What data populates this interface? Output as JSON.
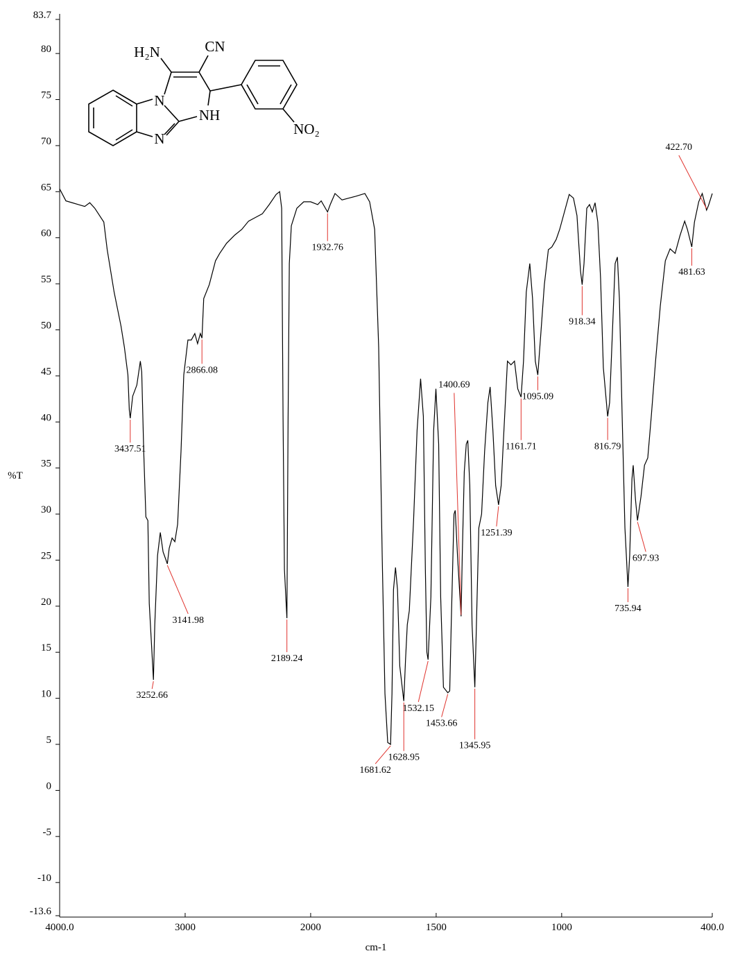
{
  "chart_data": {
    "type": "line",
    "xlabel": "cm-1",
    "ylabel": "%T",
    "xlim": [
      4000,
      400
    ],
    "xbreak": 2000,
    "ylim": [
      -13.6,
      83.7
    ],
    "xticks": [
      {
        "value": 4000,
        "label": "4000.0"
      },
      3000,
      2000,
      1500,
      1000,
      {
        "value": 400,
        "label": "400.0"
      }
    ],
    "yticks": [
      83.7,
      80,
      75,
      70,
      65,
      60,
      55,
      50,
      45,
      40,
      35,
      30,
      25,
      20,
      15,
      10,
      5,
      0,
      -5,
      -10,
      -13.6
    ],
    "structure_labels": [
      "H₂N",
      "CN",
      "N",
      "NH",
      "N",
      "NO₂"
    ],
    "x": [
      4000,
      3950,
      3900,
      3850,
      3800,
      3760,
      3720,
      3648,
      3621,
      3566,
      3511,
      3484,
      3456,
      3445,
      3437.51,
      3418,
      3385,
      3357,
      3346,
      3330,
      3313,
      3297,
      3286,
      3252.66,
      3242,
      3220,
      3198,
      3176,
      3141.98,
      3127,
      3104,
      3082,
      3060,
      3033,
      3011,
      2978,
      2951,
      2923,
      2901,
      2879,
      2866.08,
      2852,
      2808,
      2758,
      2725,
      2670,
      2604,
      2549,
      2495,
      2440,
      2385,
      2330,
      2275,
      2247,
      2231,
      2220,
      2209,
      2189.24,
      2180,
      2170,
      2154,
      2110,
      2055,
      2000,
      1972,
      1958,
      1932.76,
      1922,
      1903,
      1875,
      1848,
      1820,
      1784,
      1765,
      1745,
      1729,
      1715,
      1704,
      1693,
      1681.62,
      1676,
      1670,
      1662,
      1654,
      1645,
      1628.95,
      1622,
      1615,
      1607,
      1590,
      1576,
      1562,
      1551,
      1543,
      1537,
      1532.15,
      1521,
      1510,
      1501,
      1490,
      1482,
      1471,
      1453.66,
      1446,
      1440,
      1429,
      1424,
      1415,
      1400.69,
      1396,
      1388,
      1380,
      1374,
      1366,
      1357,
      1345.95,
      1341,
      1330,
      1319,
      1307,
      1294,
      1285,
      1274,
      1263,
      1251.39,
      1241,
      1230,
      1216,
      1202,
      1188,
      1175,
      1161.71,
      1152,
      1141,
      1127,
      1116,
      1105,
      1095.09,
      1083,
      1069,
      1053,
      1039,
      1022,
      1008,
      989,
      970,
      953,
      939,
      925,
      918.34,
      911,
      900,
      889,
      878,
      867,
      856,
      845,
      834,
      816.79,
      809,
      798,
      787,
      778,
      770,
      759,
      748,
      735.94,
      729,
      720,
      715,
      706,
      697.93,
      684,
      670,
      657,
      643,
      626,
      607,
      587,
      568,
      548,
      529,
      510,
      499,
      481.63,
      471,
      454,
      440,
      422.7,
      415,
      400
    ],
    "series": [
      {
        "color": "#000000",
        "values": [
          65.3,
          64.0,
          63.8,
          63.6,
          63.4,
          63.8,
          63.2,
          61.7,
          58.7,
          54.1,
          50.4,
          48.1,
          45.1,
          41.3,
          40.4,
          42.8,
          44.0,
          46.6,
          45.4,
          36.8,
          29.7,
          29.3,
          20.3,
          12.0,
          18.0,
          25.5,
          28.0,
          25.9,
          24.6,
          26.3,
          27.4,
          27.0,
          28.9,
          36.8,
          45.1,
          48.9,
          48.9,
          49.6,
          48.5,
          49.6,
          49.1,
          53.4,
          54.9,
          57.5,
          58.3,
          59.4,
          60.3,
          60.9,
          61.8,
          62.2,
          62.6,
          63.6,
          64.7,
          65.0,
          63.2,
          40.6,
          24.0,
          18.7,
          40.0,
          57.2,
          61.3,
          63.2,
          63.9,
          63.9,
          63.6,
          64.0,
          62.8,
          63.6,
          64.8,
          64.1,
          64.3,
          64.5,
          64.8,
          63.9,
          60.9,
          48.1,
          25.5,
          10.5,
          5.2,
          5.0,
          10.5,
          21.8,
          24.2,
          21.8,
          13.5,
          9.7,
          14.2,
          18.0,
          19.5,
          29.3,
          39.1,
          44.7,
          40.6,
          24.0,
          15.0,
          14.2,
          21.0,
          39.1,
          43.6,
          37.6,
          21.0,
          11.2,
          10.6,
          10.8,
          18.0,
          30.0,
          30.4,
          25.5,
          18.9,
          25.5,
          34.6,
          37.6,
          38.0,
          33.1,
          18.0,
          11.2,
          16.5,
          28.5,
          30.0,
          36.8,
          42.1,
          43.8,
          39.1,
          33.1,
          31.0,
          33.1,
          39.1,
          46.6,
          46.2,
          46.6,
          43.6,
          42.7,
          46.6,
          54.1,
          57.2,
          53.4,
          46.6,
          45.1,
          49.6,
          54.9,
          58.7,
          59.0,
          59.8,
          60.9,
          62.8,
          64.7,
          64.3,
          62.4,
          56.4,
          54.9,
          57.2,
          63.2,
          63.6,
          62.8,
          63.8,
          61.7,
          55.6,
          45.9,
          40.6,
          42.1,
          49.6,
          57.2,
          57.9,
          53.4,
          40.6,
          28.5,
          22.1,
          25.5,
          33.8,
          35.3,
          31.6,
          29.3,
          31.9,
          35.3,
          36.1,
          40.6,
          46.6,
          52.6,
          57.5,
          58.8,
          58.3,
          60.2,
          61.8,
          60.9,
          59.0,
          61.7,
          63.9,
          64.8,
          63.0,
          63.5,
          64.8
        ]
      }
    ],
    "peaks": [
      {
        "x": 3437.51,
        "y": 40.4
      },
      {
        "x": 3252.66,
        "y": 12.0
      },
      {
        "x": 3141.98,
        "y": 24.6
      },
      {
        "x": 2866.08,
        "y": 49.1
      },
      {
        "x": 2189.24,
        "y": 18.7
      },
      {
        "x": 1932.76,
        "y": 62.8
      },
      {
        "x": 1681.62,
        "y": 5.0
      },
      {
        "x": 1628.95,
        "y": 9.7
      },
      {
        "x": 1532.15,
        "y": 14.2
      },
      {
        "x": 1453.66,
        "y": 10.6
      },
      {
        "x": 1400.69,
        "y": 18.9
      },
      {
        "x": 1345.95,
        "y": 11.2
      },
      {
        "x": 1251.39,
        "y": 31.0
      },
      {
        "x": 1161.71,
        "y": 42.7
      },
      {
        "x": 1095.09,
        "y": 45.1
      },
      {
        "x": 918.34,
        "y": 54.9
      },
      {
        "x": 816.79,
        "y": 40.6
      },
      {
        "x": 735.94,
        "y": 22.1
      },
      {
        "x": 697.93,
        "y": 29.3
      },
      {
        "x": 481.63,
        "y": 59.0
      },
      {
        "x": 422.7,
        "label": "422.70",
        "y": 63.0
      }
    ],
    "peak_color": "#e0322c"
  }
}
